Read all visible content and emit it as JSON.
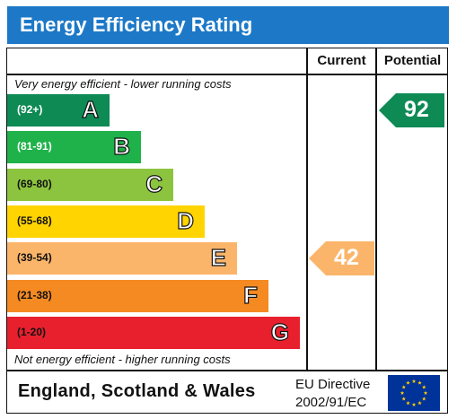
{
  "chart_data": {
    "type": "table",
    "title": "Energy Efficiency Rating",
    "columns": [
      "Current",
      "Potential"
    ],
    "top_note": "Very energy efficient - lower running costs",
    "bottom_note": "Not energy efficient - higher running costs",
    "bands": [
      {
        "range": "(92+)",
        "letter": "A",
        "color": "#0e8a55",
        "range_color": "#ffffff"
      },
      {
        "range": "(81-91)",
        "letter": "B",
        "color": "#1fb24a",
        "range_color": "#ffffff"
      },
      {
        "range": "(69-80)",
        "letter": "C",
        "color": "#8cc43f",
        "range_color": "#111111"
      },
      {
        "range": "(55-68)",
        "letter": "D",
        "color": "#ffd400",
        "range_color": "#111111"
      },
      {
        "range": "(39-54)",
        "letter": "E",
        "color": "#fbb56a",
        "range_color": "#111111"
      },
      {
        "range": "(21-38)",
        "letter": "F",
        "color": "#f58a22",
        "range_color": "#111111"
      },
      {
        "range": "(1-20)",
        "letter": "G",
        "color": "#e8202e",
        "range_color": "#111111"
      }
    ],
    "current": {
      "value": 42,
      "band": "E",
      "color": "#fbb56a"
    },
    "potential": {
      "value": 92,
      "band": "A",
      "color": "#0e8a55"
    }
  },
  "footer": {
    "region": "England, Scotland & Wales",
    "directive_line1": "EU Directive",
    "directive_line2": "2002/91/EC"
  },
  "header_color": "#1d79c7"
}
